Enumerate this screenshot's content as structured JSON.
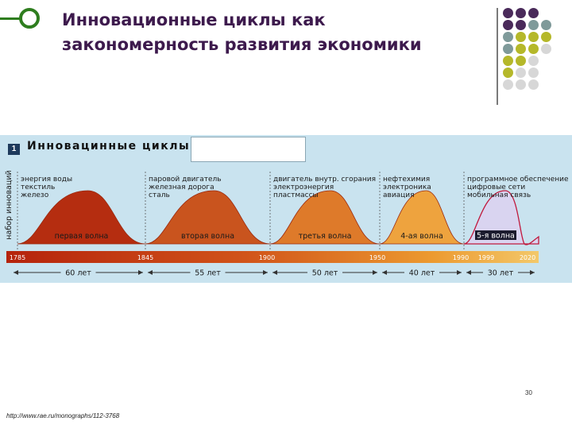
{
  "slide": {
    "title": "Инновационные циклы как закономерность развития экономики",
    "footer_url": "http://www.rae.ru/monographs/112-3768",
    "page_number": "30",
    "deco_colors": [
      "#4a2a5a",
      "#7f9a9a",
      "#b5b82a",
      "#d7d7d7"
    ]
  },
  "figure": {
    "number": "1",
    "title": "Инновацинные циклы",
    "y_label": "набор инноваций",
    "waves": [
      {
        "label": "первая волна",
        "innovations": [
          "энергия воды",
          "текстиль",
          "железо"
        ],
        "color": "#b52d10"
      },
      {
        "label": "вторая волна",
        "innovations": [
          "паровой двигатель",
          "железная дорога",
          "сталь"
        ],
        "color": "#c9541e"
      },
      {
        "label": "третья волна",
        "innovations": [
          "двигатель внутр. сгорания",
          "электроэнергия",
          "пластмассы"
        ],
        "color": "#de7a2a"
      },
      {
        "label": "4-ая волна",
        "innovations": [
          "нефтехимия",
          "электроника",
          "авиация"
        ],
        "color": "#eea33e"
      },
      {
        "label": "5-я волна",
        "innovations": [
          "программное обеспечение",
          "цифровые сети",
          "мобильная связь"
        ],
        "color": "#d9d4f0"
      }
    ],
    "timeline_years": [
      "1785",
      "1845",
      "1900",
      "1950",
      "1990",
      "1999",
      "2020"
    ],
    "durations": [
      "60 лет",
      "55 лет",
      "50 лет",
      "40 лет",
      "30 лет"
    ]
  }
}
